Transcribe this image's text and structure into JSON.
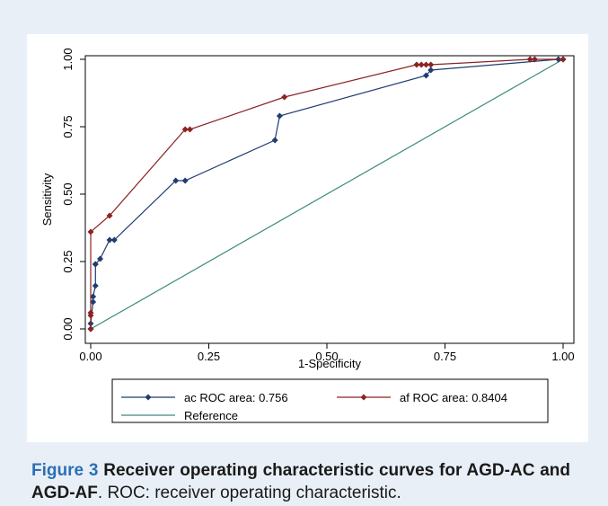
{
  "chart_data": {
    "type": "line",
    "xlabel": "1-Specificity",
    "ylabel": "Sensitivity",
    "xlim": [
      0,
      1
    ],
    "ylim": [
      0,
      1
    ],
    "x_ticks": [
      "0.00",
      "0.25",
      "0.50",
      "0.75",
      "1.00"
    ],
    "y_ticks": [
      "0.00",
      "0.25",
      "0.50",
      "0.75",
      "1.00"
    ],
    "grid": false,
    "legend_position": "bottom",
    "series": [
      {
        "name": "ac ROC area: 0.756",
        "color": "#1f3d70",
        "marker": "diamond",
        "x": [
          0,
          0,
          0.005,
          0.005,
          0.01,
          0.01,
          0.01,
          0.02,
          0.04,
          0.05,
          0.18,
          0.2,
          0.39,
          0.4,
          0.71,
          0.72,
          0.99,
          1
        ],
        "y": [
          0,
          0.02,
          0.1,
          0.12,
          0.16,
          0.24,
          0.24,
          0.26,
          0.33,
          0.33,
          0.55,
          0.55,
          0.7,
          0.79,
          0.94,
          0.96,
          1,
          1
        ]
      },
      {
        "name": "af ROC area: 0.8404",
        "color": "#8b2323",
        "marker": "diamond",
        "x": [
          0,
          0,
          0,
          0,
          0.04,
          0.2,
          0.21,
          0.41,
          0.69,
          0.7,
          0.71,
          0.72,
          0.93,
          0.94,
          1
        ],
        "y": [
          0,
          0.05,
          0.06,
          0.36,
          0.42,
          0.74,
          0.74,
          0.86,
          0.98,
          0.98,
          0.98,
          0.98,
          1,
          1,
          1
        ]
      },
      {
        "name": "Reference",
        "color": "#3a8a7e",
        "marker": "none",
        "x": [
          0,
          1
        ],
        "y": [
          0,
          1
        ]
      }
    ]
  },
  "caption": {
    "label": "Figure 3",
    "title": "Receiver operating characteristic curves for AGD-AC and AGD-AF",
    "body": ". ROC: receiver operating characteristic."
  },
  "colors": {
    "page_background": "#e9eff7",
    "figure_label": "#2b6fb5"
  }
}
